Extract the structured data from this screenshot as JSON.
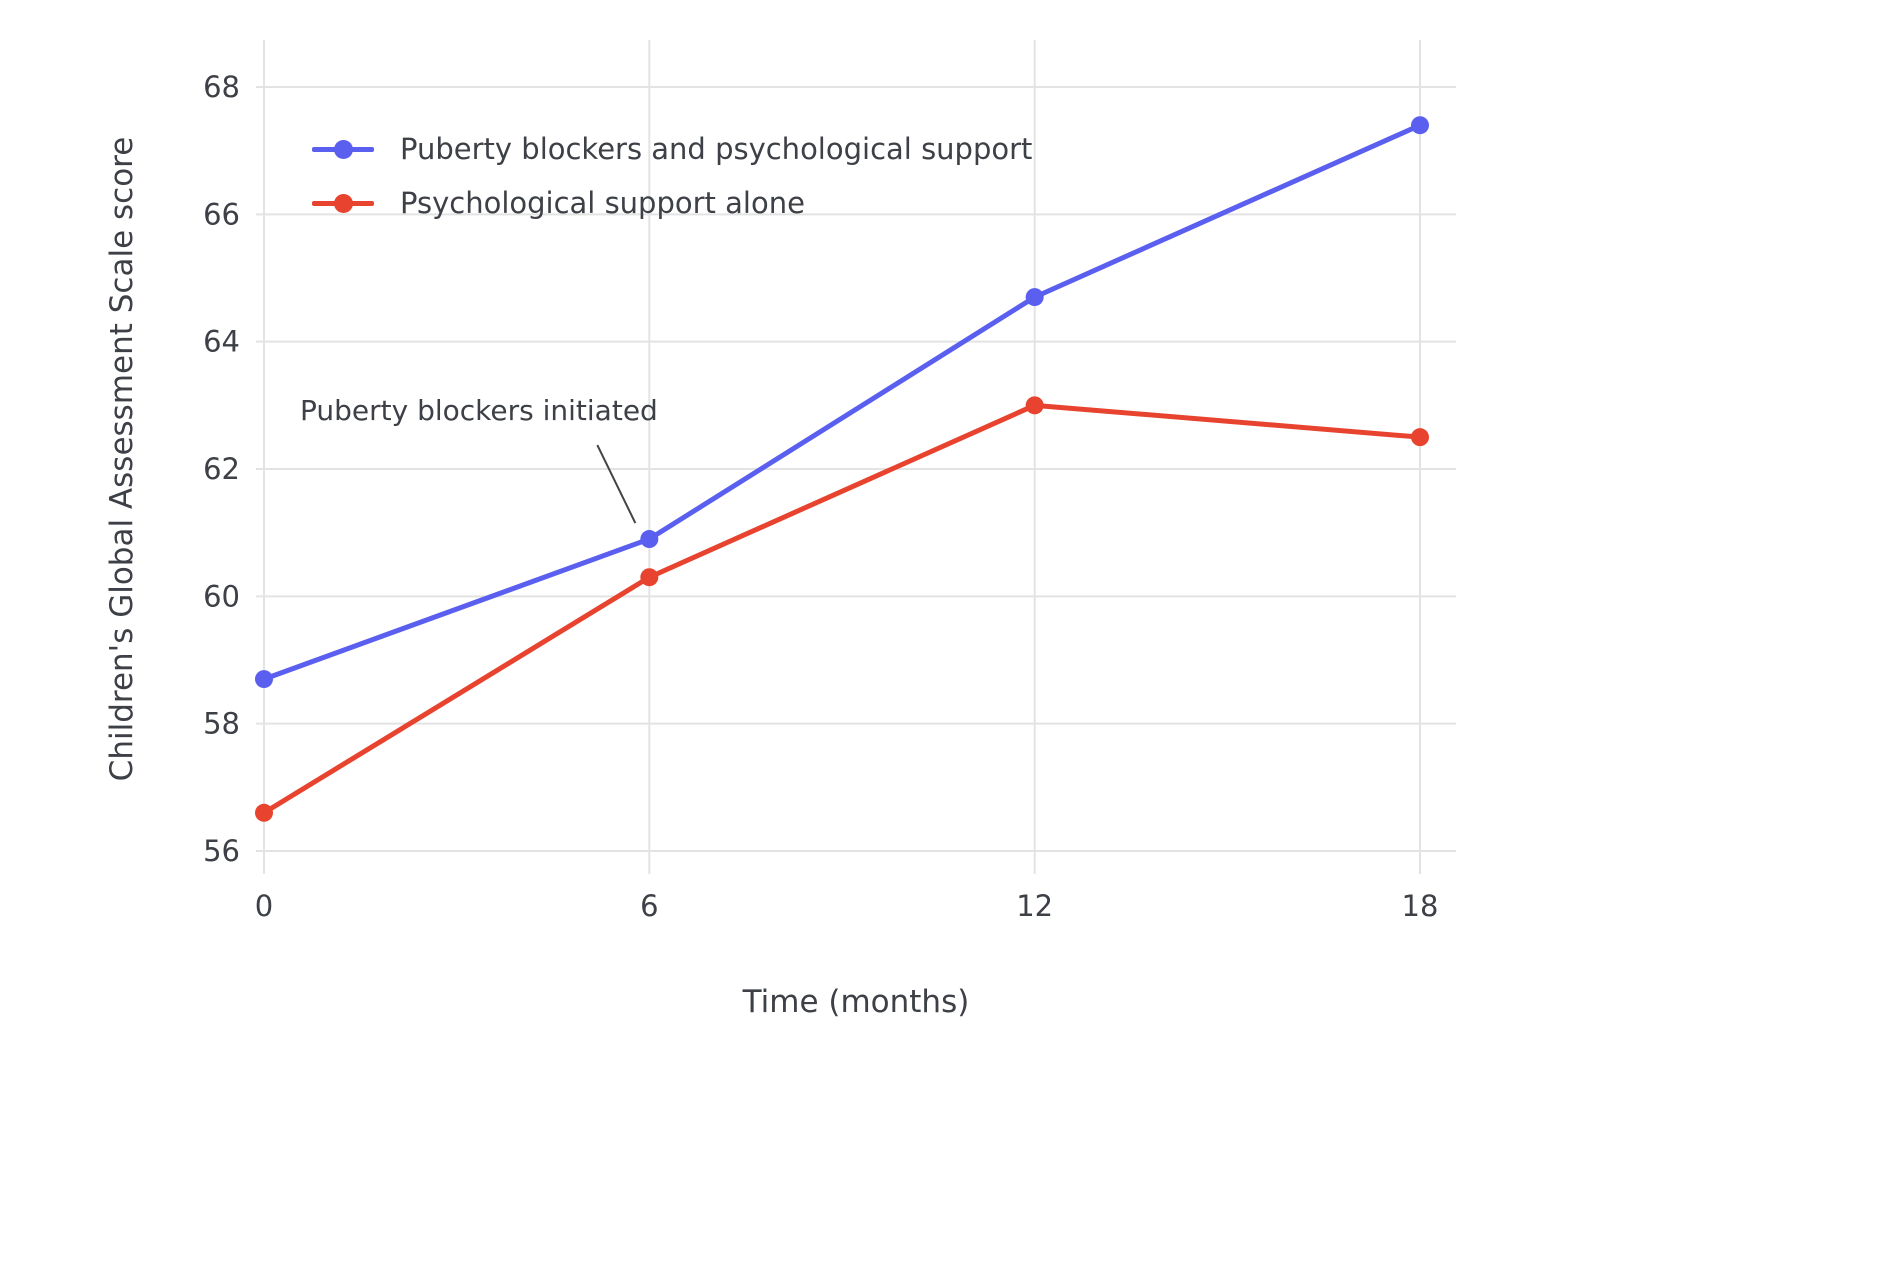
{
  "chart_data": {
    "type": "line",
    "title": "",
    "x": [
      0,
      6,
      12,
      18
    ],
    "xticks": [
      0,
      6,
      12,
      18
    ],
    "yticks": [
      56,
      58,
      60,
      62,
      64,
      66,
      68
    ],
    "xlabel": "Time (months)",
    "ylabel": "Children's Global Assessment Scale score",
    "xlim": [
      -0.1,
      18.6
    ],
    "ylim": [
      55.4,
      68.6
    ],
    "grid": true,
    "grid_color": "#e3e3e3",
    "text_color": "#3d4046",
    "legend_position": "top-left-inside",
    "series": [
      {
        "name": "Puberty blockers and psychological support",
        "color": "#5a5ff0",
        "values": [
          58.7,
          60.9,
          64.7,
          67.4
        ]
      },
      {
        "name": "Psychological support alone",
        "color": "#e8432f",
        "values": [
          56.6,
          60.3,
          63.0,
          62.5
        ]
      }
    ],
    "annotation": {
      "text": "Puberty blockers initiated",
      "target_x": 6,
      "target_y": 60.9,
      "line_color": "#444444"
    }
  }
}
